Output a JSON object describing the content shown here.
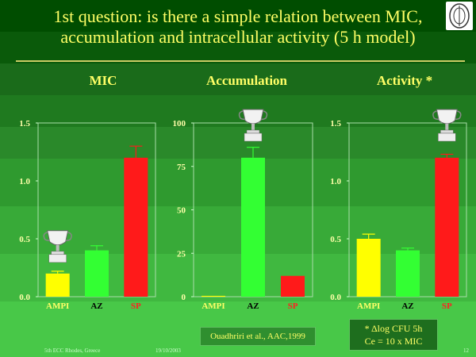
{
  "title": "1st question: is there a simple relation between MIC, accumulation and intracellular activity  (5 h model)",
  "panels": [
    {
      "heading": "MIC"
    },
    {
      "heading": "Accumulation"
    },
    {
      "heading": "Activity *"
    }
  ],
  "chart_data": [
    {
      "type": "bar",
      "title": "MIC",
      "categories": [
        "AMPI",
        "AZ",
        "SP"
      ],
      "values": [
        0.2,
        0.4,
        1.2
      ],
      "error_bars": [
        0.02,
        0.04,
        0.1
      ],
      "bar_colors": [
        "#ffff00",
        "#33ff33",
        "#ff1a1a"
      ],
      "category_colors": [
        "#ffff66",
        "#000000",
        "#ff2020"
      ],
      "yticks": [
        "0.0",
        "0.5",
        "1.0",
        "1.5"
      ],
      "ylim": [
        0,
        1.5
      ],
      "trophy_on": "AMPI"
    },
    {
      "type": "bar",
      "title": "Accumulation",
      "categories": [
        "AMPI",
        "AZ",
        "SP"
      ],
      "values": [
        0.5,
        80,
        12
      ],
      "error_bars": [
        0,
        6,
        0
      ],
      "bar_colors": [
        "#ffff00",
        "#33ff33",
        "#ff1a1a"
      ],
      "category_colors": [
        "#ffff66",
        "#000000",
        "#ff2020"
      ],
      "yticks": [
        "0",
        "25",
        "50",
        "75",
        "100"
      ],
      "ylim": [
        0,
        100
      ],
      "trophy_on": "AZ"
    },
    {
      "type": "bar",
      "title": "Activity *",
      "categories": [
        "AMPI",
        "AZ",
        "SP"
      ],
      "values": [
        0.5,
        0.4,
        1.2
      ],
      "error_bars": [
        0.04,
        0.02,
        0.03
      ],
      "bar_colors": [
        "#ffff00",
        "#33ff33",
        "#ff1a1a"
      ],
      "category_colors": [
        "#ffff66",
        "#000000",
        "#ff2020"
      ],
      "yticks": [
        "0.0",
        "0.5",
        "1.0",
        "1.5"
      ],
      "ylim": [
        0,
        1.5
      ],
      "trophy_on": "SP"
    }
  ],
  "citation": "Ouadhriri et al., AAC,1999",
  "footnote": {
    "line1": "* Δlog CFU 5h",
    "line2": "Ce = 10 x MIC"
  },
  "footer": {
    "left": "5th ECC Rhodes, Greece",
    "date": "19/10/2003",
    "page": "12"
  }
}
